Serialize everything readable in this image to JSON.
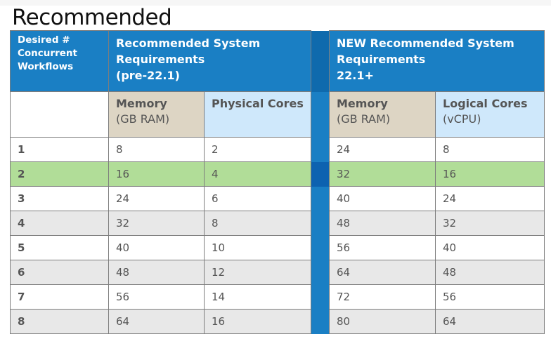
{
  "title": "Recommended",
  "table": {
    "col_headers": {
      "workflows": "Desired # Concurrent Workflows",
      "old_group_line1": "Recommended System",
      "old_group_line2": "Requirements",
      "old_group_line3": "(pre-22.1)",
      "new_group_line1": "NEW Recommended System",
      "new_group_line2": "Requirements",
      "new_group_line3": "22.1+"
    },
    "sub_headers": {
      "old_memory": "Memory",
      "old_memory_unit": "(GB RAM)",
      "old_cores": "Physical Cores",
      "new_memory": "Memory",
      "new_memory_unit": "(GB RAM)",
      "new_cores": "Logical Cores",
      "new_cores_unit": "(vCPU)"
    },
    "highlight_row": 2,
    "colors": {
      "header": "#1a7fc4",
      "memory": "#ddd5c4",
      "cores": "#cfe8fb",
      "highlight": "#b1dd98",
      "alt_row": "#e8e8e8"
    },
    "rows": [
      {
        "workflows": "1",
        "old_memory": "8",
        "old_cores": "2",
        "new_memory": "24",
        "new_cores": "8"
      },
      {
        "workflows": "2",
        "old_memory": "16",
        "old_cores": "4",
        "new_memory": "32",
        "new_cores": "16"
      },
      {
        "workflows": "3",
        "old_memory": "24",
        "old_cores": "6",
        "new_memory": "40",
        "new_cores": "24"
      },
      {
        "workflows": "4",
        "old_memory": "32",
        "old_cores": "8",
        "new_memory": "48",
        "new_cores": "32"
      },
      {
        "workflows": "5",
        "old_memory": "40",
        "old_cores": "10",
        "new_memory": "56",
        "new_cores": "40"
      },
      {
        "workflows": "6",
        "old_memory": "48",
        "old_cores": "12",
        "new_memory": "64",
        "new_cores": "48"
      },
      {
        "workflows": "7",
        "old_memory": "56",
        "old_cores": "14",
        "new_memory": "72",
        "new_cores": "56"
      },
      {
        "workflows": "8",
        "old_memory": "64",
        "old_cores": "16",
        "new_memory": "80",
        "new_cores": "64"
      }
    ]
  }
}
